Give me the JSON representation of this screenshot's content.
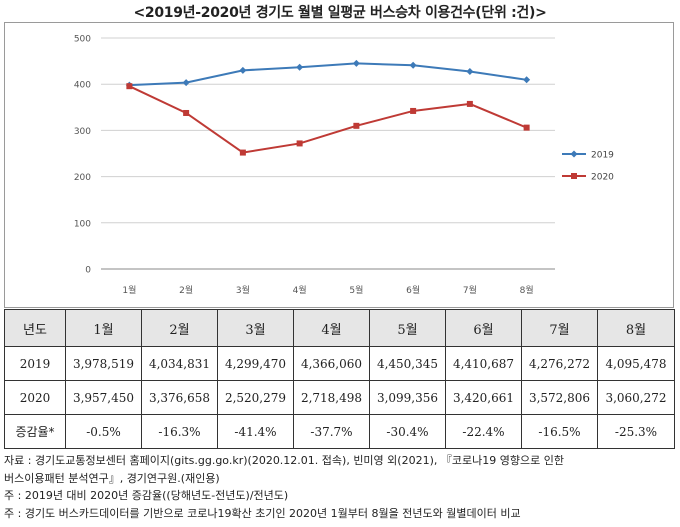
{
  "title": "<2019년-2020년 경기도 월별 일평균 버스승차 이용건수(단위 :건)>",
  "chart_data": {
    "type": "line",
    "categories": [
      "1월",
      "2월",
      "3월",
      "4월",
      "5월",
      "6월",
      "7월",
      "8월"
    ],
    "ylim": [
      0,
      500
    ],
    "yticks": [
      0,
      100,
      200,
      300,
      400,
      500
    ],
    "ytick_labels": [
      "0",
      "100",
      "200",
      "300",
      "400",
      "500"
    ],
    "grid": true,
    "legend_position": "right",
    "series": [
      {
        "name": "2019",
        "color": "#3d7ab8",
        "marker": "diamond",
        "values": [
          397.9,
          403.5,
          430.0,
          436.6,
          445.0,
          441.1,
          427.6,
          409.5
        ]
      },
      {
        "name": "2020",
        "color": "#bf3a35",
        "marker": "square",
        "values": [
          395.7,
          337.7,
          252.0,
          271.8,
          309.9,
          342.1,
          357.3,
          306.0
        ]
      }
    ]
  },
  "table": {
    "header": [
      "년도",
      "1월",
      "2월",
      "3월",
      "4월",
      "5월",
      "6월",
      "7월",
      "8월"
    ],
    "rows": [
      {
        "label": "2019",
        "values": [
          "3,978,519",
          "4,034,831",
          "4,299,470",
          "4,366,060",
          "4,450,345",
          "4,410,687",
          "4,276,272",
          "4,095,478"
        ]
      },
      {
        "label": "2020",
        "values": [
          "3,957,450",
          "3,376,658",
          "2,520,279",
          "2,718,498",
          "3,099,356",
          "3,420,661",
          "3,572,806",
          "3,060,272"
        ]
      },
      {
        "label": "증감율*",
        "values": [
          "-0.5%",
          "-16.3%",
          "-41.4%",
          "-37.7%",
          "-30.4%",
          "-22.4%",
          "-16.5%",
          "-25.3%"
        ]
      }
    ]
  },
  "notes": [
    "자료 : 경기도교통정보센터 홈페이지(gits.gg.go.kr)(2020.12.01. 접속), 빈미영 외(2021), 『코로나19 영향으로 인한",
    "버스이용패턴 분석연구』, 경기연구원.(재인용)",
    "주 : 2019년 대비 2020년 증감율((당해년도-전년도)/전년도)",
    "주 : 경기도 버스카드데이터를 기반으로 코로나19확산 초기인 2020년 1월부터 8월을 전년도와 월별데이터 비교"
  ]
}
